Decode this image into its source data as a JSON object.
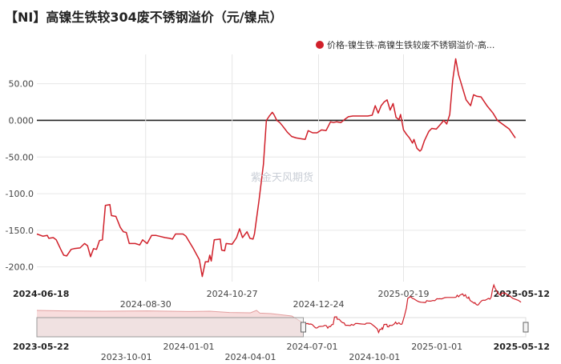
{
  "title": "【NI】高镍生铁较304废不锈钢溢价（元/镍点）",
  "watermark": "紫金天风期货",
  "colors": {
    "series": "#d0202a",
    "zero_line": "#222222",
    "grid": "#e6e6e6",
    "navigator_fill": "#f4c6c6"
  },
  "chart_data": {
    "type": "line",
    "title": "【NI】高镍生铁较304废不锈钢溢价（元/镍点）",
    "legend_position": "top-right",
    "grid": true,
    "ylim": [
      -220,
      90
    ],
    "y_ticks": [
      50,
      0,
      -50,
      -100,
      -150,
      -200
    ],
    "y_tick_labels": [
      "50.00",
      "0.000",
      "-50.00",
      "-100.0",
      "-150.0",
      "-200.0"
    ],
    "x_range": [
      "2024-06-18",
      "2025-05-12"
    ],
    "x_ticks": [
      {
        "label": "2024-06-18",
        "date": "2024-06-18",
        "row": 0,
        "edge": true
      },
      {
        "label": "2024-08-30",
        "date": "2024-08-30",
        "row": 1,
        "edge": false
      },
      {
        "label": "2024-10-27",
        "date": "2024-10-27",
        "row": 0,
        "edge": false
      },
      {
        "label": "2024-12-24",
        "date": "2024-12-24",
        "row": 1,
        "edge": false
      },
      {
        "label": "2025-02-19",
        "date": "2025-02-19",
        "row": 0,
        "edge": false
      },
      {
        "label": "2025-05-12",
        "date": "2025-05-12",
        "row": 0,
        "edge": true
      }
    ],
    "series": [
      {
        "name": "价格-镍生铁-高镍生铁较废不锈钢溢价-高...",
        "points": [
          [
            "2024-06-18",
            -155
          ],
          [
            "2024-06-22",
            -158
          ],
          [
            "2024-06-25",
            -157
          ],
          [
            "2024-06-26",
            -161
          ],
          [
            "2024-06-29",
            -160
          ],
          [
            "2024-07-01",
            -163
          ],
          [
            "2024-07-04",
            -176
          ],
          [
            "2024-07-06",
            -184
          ],
          [
            "2024-07-08",
            -185
          ],
          [
            "2024-07-11",
            -176
          ],
          [
            "2024-07-13",
            -175
          ],
          [
            "2024-07-17",
            -174
          ],
          [
            "2024-07-20",
            -168
          ],
          [
            "2024-07-22",
            -171
          ],
          [
            "2024-07-24",
            -186
          ],
          [
            "2024-07-26",
            -175
          ],
          [
            "2024-07-28",
            -176
          ],
          [
            "2024-07-30",
            -164
          ],
          [
            "2024-08-01",
            -163
          ],
          [
            "2024-08-03",
            -116
          ],
          [
            "2024-08-06",
            -115
          ],
          [
            "2024-08-07",
            -130
          ],
          [
            "2024-08-10",
            -131
          ],
          [
            "2024-08-13",
            -146
          ],
          [
            "2024-08-15",
            -152
          ],
          [
            "2024-08-17",
            -153
          ],
          [
            "2024-08-19",
            -168
          ],
          [
            "2024-08-23",
            -168
          ],
          [
            "2024-08-26",
            -170
          ],
          [
            "2024-08-28",
            -163
          ],
          [
            "2024-08-31",
            -168
          ],
          [
            "2024-09-03",
            -157
          ],
          [
            "2024-09-06",
            -157
          ],
          [
            "2024-09-08",
            -158
          ],
          [
            "2024-09-12",
            -160
          ],
          [
            "2024-09-15",
            -161
          ],
          [
            "2024-09-17",
            -162
          ],
          [
            "2024-09-19",
            -155
          ],
          [
            "2024-09-24",
            -155
          ],
          [
            "2024-09-26",
            -158
          ],
          [
            "2024-10-01",
            -175
          ],
          [
            "2024-10-05",
            -190
          ],
          [
            "2024-10-07",
            -213
          ],
          [
            "2024-10-09",
            -193
          ],
          [
            "2024-10-11",
            -193
          ],
          [
            "2024-10-12",
            -184
          ],
          [
            "2024-10-13",
            -192
          ],
          [
            "2024-10-15",
            -163
          ],
          [
            "2024-10-19",
            -162
          ],
          [
            "2024-10-20",
            -177
          ],
          [
            "2024-10-22",
            -178
          ],
          [
            "2024-10-23",
            -168
          ],
          [
            "2024-10-27",
            -169
          ],
          [
            "2024-10-30",
            -160
          ],
          [
            "2024-11-01",
            -148
          ],
          [
            "2024-11-03",
            -160
          ],
          [
            "2024-11-06",
            -152
          ],
          [
            "2024-11-08",
            -161
          ],
          [
            "2024-11-10",
            -162
          ],
          [
            "2024-11-11",
            -155
          ],
          [
            "2024-11-14",
            -110
          ],
          [
            "2024-11-17",
            -60
          ],
          [
            "2024-11-19",
            0
          ],
          [
            "2024-11-21",
            6
          ],
          [
            "2024-11-23",
            11
          ],
          [
            "2024-11-24",
            8
          ],
          [
            "2024-11-26",
            0
          ],
          [
            "2024-11-28",
            -3
          ],
          [
            "2024-11-30",
            -8
          ],
          [
            "2024-12-03",
            -16
          ],
          [
            "2024-12-06",
            -22
          ],
          [
            "2024-12-09",
            -24
          ],
          [
            "2024-12-12",
            -25
          ],
          [
            "2024-12-15",
            -26
          ],
          [
            "2024-12-17",
            -14
          ],
          [
            "2024-12-20",
            -17
          ],
          [
            "2024-12-23",
            -17
          ],
          [
            "2024-12-26",
            -13
          ],
          [
            "2024-12-29",
            -14
          ],
          [
            "2025-01-01",
            -2
          ],
          [
            "2025-01-03",
            -3
          ],
          [
            "2025-01-05",
            -2
          ],
          [
            "2025-01-08",
            -3
          ],
          [
            "2025-01-11",
            2
          ],
          [
            "2025-01-13",
            5
          ],
          [
            "2025-01-16",
            6
          ],
          [
            "2025-01-20",
            6
          ],
          [
            "2025-01-23",
            6
          ],
          [
            "2025-01-26",
            6
          ],
          [
            "2025-01-29",
            7
          ],
          [
            "2025-01-31",
            20
          ],
          [
            "2025-02-02",
            10
          ],
          [
            "2025-02-04",
            20
          ],
          [
            "2025-02-06",
            25
          ],
          [
            "2025-02-08",
            28
          ],
          [
            "2025-02-10",
            14
          ],
          [
            "2025-02-12",
            23
          ],
          [
            "2025-02-14",
            4
          ],
          [
            "2025-02-16",
            1
          ],
          [
            "2025-02-17",
            8
          ],
          [
            "2025-02-19",
            -13
          ],
          [
            "2025-02-21",
            -19
          ],
          [
            "2025-02-23",
            -24
          ],
          [
            "2025-02-25",
            -31
          ],
          [
            "2025-02-26",
            -26
          ],
          [
            "2025-02-28",
            -38
          ],
          [
            "2025-03-02",
            -42
          ],
          [
            "2025-03-03",
            -40
          ],
          [
            "2025-03-05",
            -28
          ],
          [
            "2025-03-08",
            -15
          ],
          [
            "2025-03-10",
            -11
          ],
          [
            "2025-03-13",
            -12
          ],
          [
            "2025-03-16",
            -5
          ],
          [
            "2025-03-18",
            0
          ],
          [
            "2025-03-20",
            -5
          ],
          [
            "2025-03-22",
            8
          ],
          [
            "2025-03-24",
            55
          ],
          [
            "2025-03-26",
            84
          ],
          [
            "2025-03-28",
            62
          ],
          [
            "2025-04-02",
            28
          ],
          [
            "2025-04-05",
            20
          ],
          [
            "2025-04-07",
            35
          ],
          [
            "2025-04-09",
            33
          ],
          [
            "2025-04-12",
            32
          ],
          [
            "2025-04-16",
            20
          ],
          [
            "2025-04-20",
            10
          ],
          [
            "2025-04-23",
            0
          ],
          [
            "2025-05-01",
            -12
          ],
          [
            "2025-05-05",
            -24
          ]
        ]
      }
    ],
    "navigator": {
      "x_range": [
        "2023-05-22",
        "2025-05-12"
      ],
      "x_ticks": [
        {
          "label": "2023-05-22",
          "date": "2023-05-22",
          "row": 0,
          "edge": true
        },
        {
          "label": "2023-10-01",
          "date": "2023-10-01",
          "row": 1,
          "edge": false
        },
        {
          "label": "2024-01-01",
          "date": "2024-01-01",
          "row": 0,
          "edge": false
        },
        {
          "label": "2024-04-01",
          "date": "2024-04-01",
          "row": 1,
          "edge": false
        },
        {
          "label": "2024-07-01",
          "date": "2024-07-01",
          "row": 0,
          "edge": false
        },
        {
          "label": "2024-10-01",
          "date": "2024-10-01",
          "row": 1,
          "edge": false
        },
        {
          "label": "2025-01-01",
          "date": "2025-01-01",
          "row": 0,
          "edge": false
        },
        {
          "label": "2025-05-12",
          "date": "2025-05-12",
          "row": 0,
          "edge": true
        }
      ],
      "selection": [
        "2024-06-18",
        "2025-05-12"
      ],
      "history_points": [
        [
          "2023-05-22",
          -75
        ],
        [
          "2023-07-01",
          -78
        ],
        [
          "2023-09-01",
          -80
        ],
        [
          "2023-11-01",
          -78
        ],
        [
          "2024-01-01",
          -82
        ],
        [
          "2024-02-01",
          -80
        ],
        [
          "2024-03-01",
          -88
        ],
        [
          "2024-04-01",
          -90
        ],
        [
          "2024-04-10",
          -75
        ],
        [
          "2024-04-15",
          -92
        ],
        [
          "2024-05-01",
          -95
        ],
        [
          "2024-06-01",
          -110
        ],
        [
          "2024-06-18",
          -155
        ]
      ]
    }
  }
}
